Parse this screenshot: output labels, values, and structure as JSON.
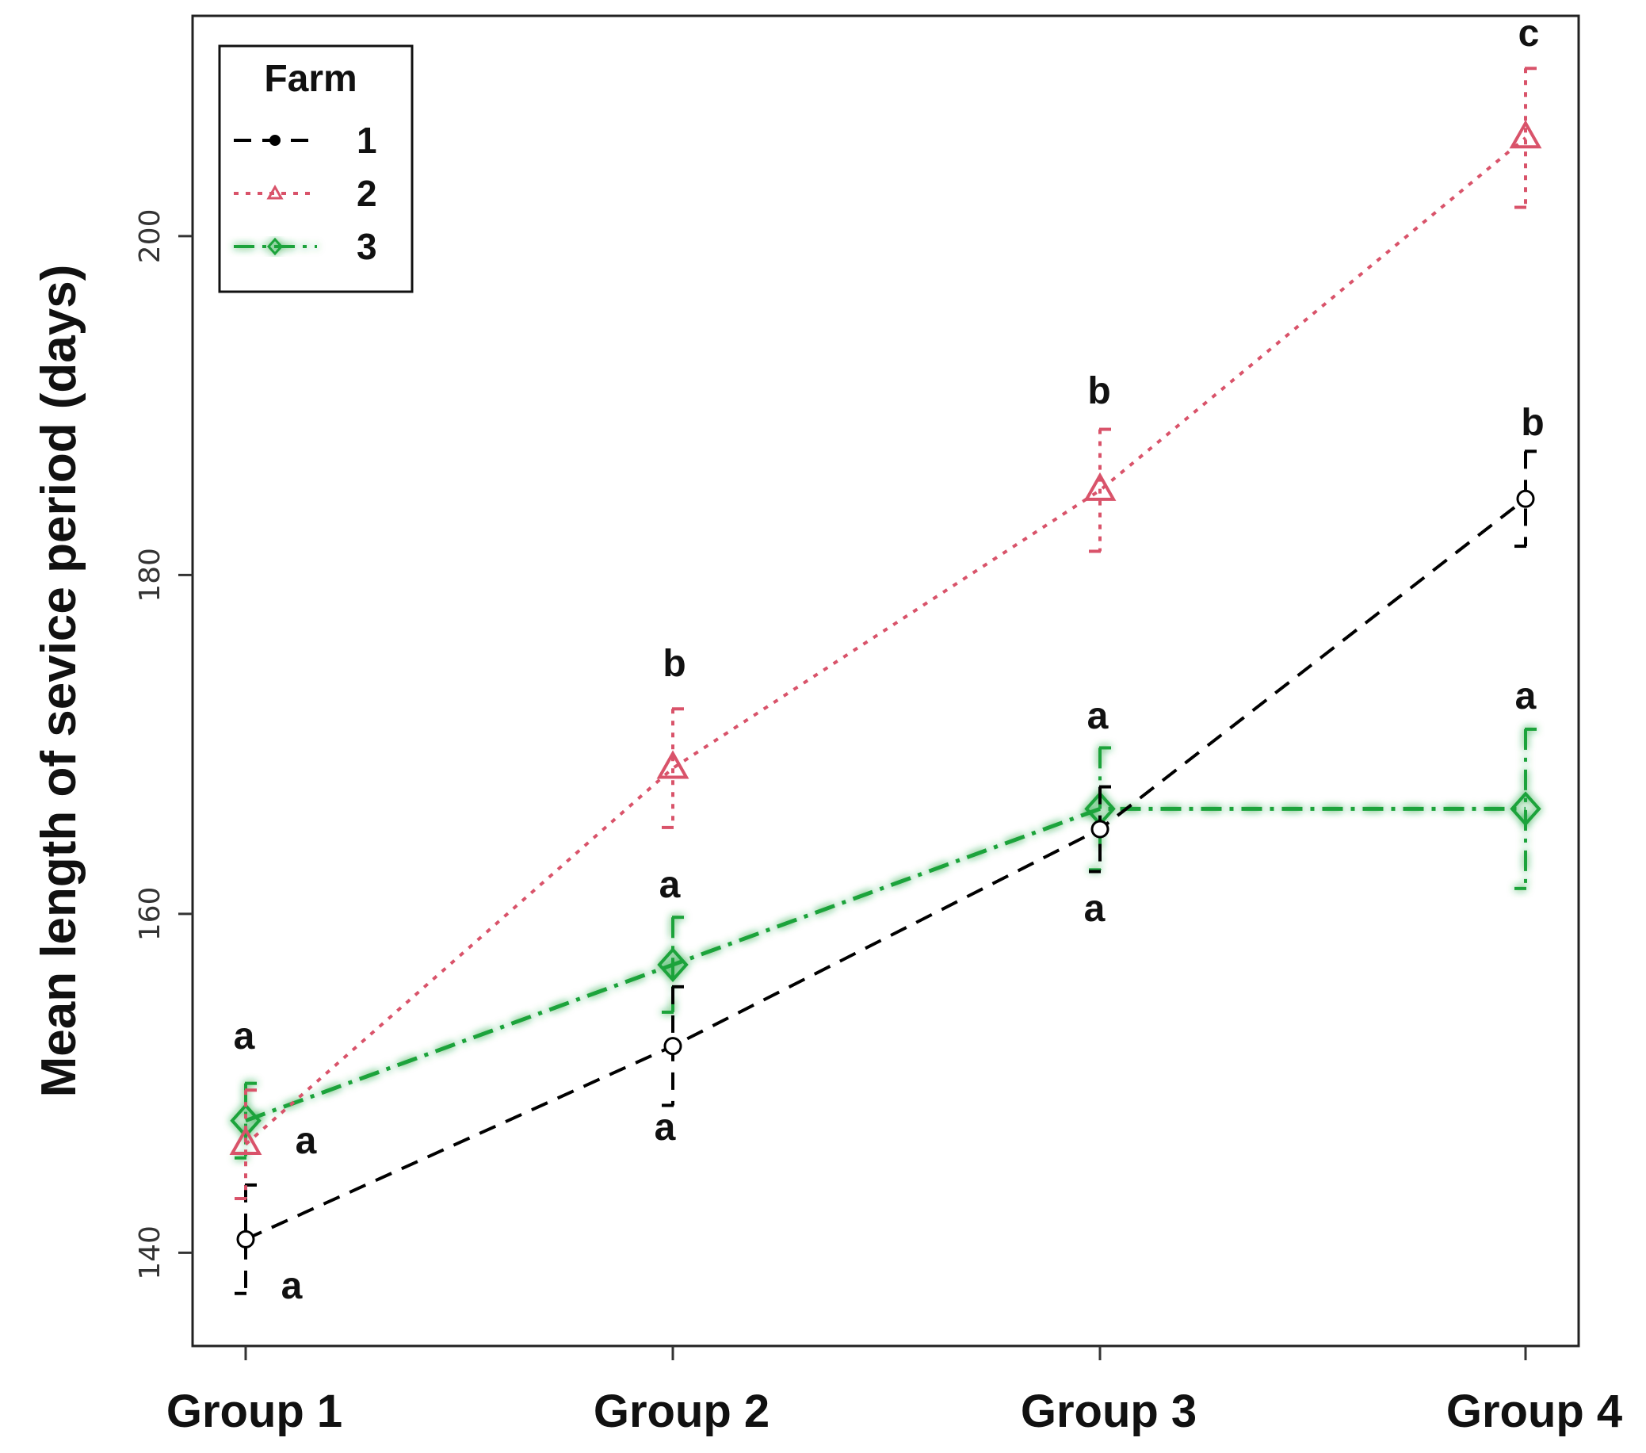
{
  "chart_data": {
    "type": "line",
    "title": "",
    "xlabel": "",
    "ylabel": "Mean length of sevice period (days)",
    "categories": [
      "Group 1",
      "Group 2",
      "Group 3",
      "Group 4"
    ],
    "ylim": [
      134.5,
      213
    ],
    "yticks": [
      140,
      160,
      180,
      200
    ],
    "grid": false,
    "legend": {
      "title": "Farm",
      "position": "top-left"
    },
    "series": [
      {
        "name": "1",
        "color": "#000000",
        "dash": "dashed",
        "marker": "circle",
        "values": [
          140.8,
          152.2,
          165,
          184.5
        ],
        "errors": [
          3.2,
          3.5,
          2.5,
          2.8
        ],
        "letters": [
          "a",
          "a",
          "a",
          "b"
        ]
      },
      {
        "name": "2",
        "color": "#d9536a",
        "dash": "dotted",
        "marker": "triangle",
        "values": [
          146.4,
          168.6,
          185,
          205.8
        ],
        "errors": [
          3.2,
          3.5,
          3.6,
          4.1
        ],
        "letters": [
          "a",
          "b",
          "b",
          "c"
        ]
      },
      {
        "name": "3",
        "color": "#1aa33a",
        "dash": "dashdot",
        "marker": "diamond",
        "values": [
          147.8,
          157,
          166.2,
          166.2
        ],
        "errors": [
          2.2,
          2.8,
          3.6,
          4.7
        ],
        "letters": [
          "a",
          "a",
          "a",
          "a"
        ]
      }
    ]
  }
}
